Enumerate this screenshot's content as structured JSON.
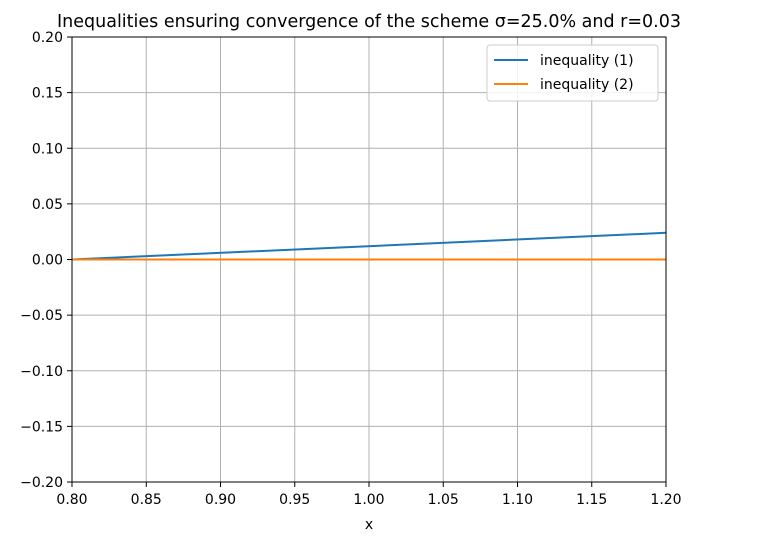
{
  "chart_data": {
    "type": "line",
    "title": "Inequalities ensuring convergence of the scheme σ=25.0% and r=0.03",
    "xlabel": "x",
    "ylabel": "",
    "xlim": [
      0.8,
      1.2
    ],
    "ylim": [
      -0.2,
      0.2
    ],
    "xticks": [
      0.8,
      0.85,
      0.9,
      0.95,
      1.0,
      1.05,
      1.1,
      1.15,
      1.2
    ],
    "xtick_labels": [
      "0.80",
      "0.85",
      "0.90",
      "0.95",
      "1.00",
      "1.05",
      "1.10",
      "1.15",
      "1.20"
    ],
    "yticks": [
      -0.2,
      -0.15,
      -0.1,
      -0.05,
      0.0,
      0.05,
      0.1,
      0.15,
      0.2
    ],
    "ytick_labels": [
      "−0.20",
      "−0.15",
      "−0.10",
      "−0.05",
      "0.00",
      "0.05",
      "0.10",
      "0.15",
      "0.20"
    ],
    "grid": true,
    "legend_position": "top-right",
    "series": [
      {
        "name": "inequality (1)",
        "color": "#1f77b4",
        "x": [
          0.8,
          1.2
        ],
        "y": [
          0.0,
          0.024
        ]
      },
      {
        "name": "inequality (2)",
        "color": "#ff7f0e",
        "x": [
          0.8,
          1.2
        ],
        "y": [
          0.0,
          0.0
        ]
      }
    ]
  }
}
